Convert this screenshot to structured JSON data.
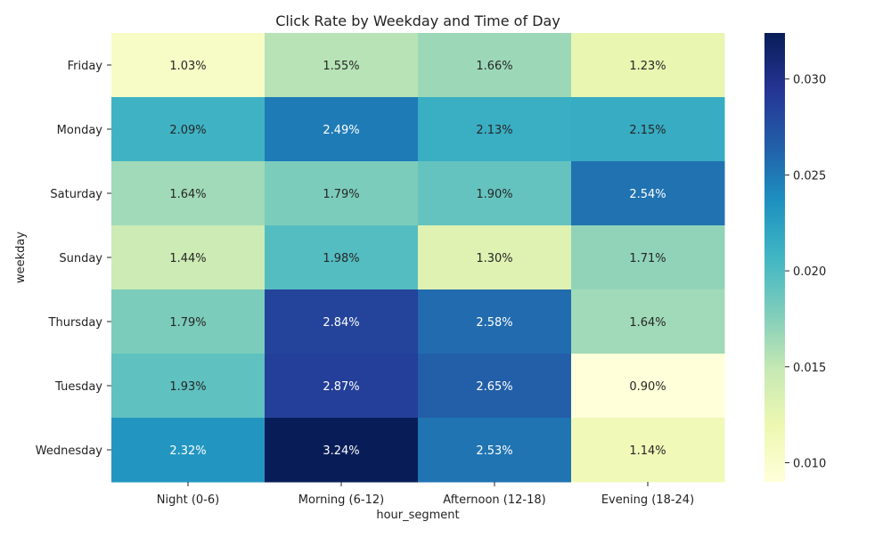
{
  "chart_data": {
    "type": "heatmap",
    "title": "Click Rate by Weekday and Time of Day",
    "xlabel": "hour_segment",
    "ylabel": "weekday",
    "columns": [
      "Night (0-6)",
      "Morning (6-12)",
      "Afternoon (12-18)",
      "Evening (18-24)"
    ],
    "rows": [
      "Friday",
      "Monday",
      "Saturday",
      "Sunday",
      "Thursday",
      "Tuesday",
      "Wednesday"
    ],
    "values": [
      [
        0.0103,
        0.0155,
        0.0166,
        0.0123
      ],
      [
        0.0209,
        0.0249,
        0.0213,
        0.0215
      ],
      [
        0.0164,
        0.0179,
        0.019,
        0.0254
      ],
      [
        0.0144,
        0.0198,
        0.013,
        0.0171
      ],
      [
        0.0179,
        0.0284,
        0.0258,
        0.0164
      ],
      [
        0.0193,
        0.0287,
        0.0265,
        0.009
      ],
      [
        0.0232,
        0.0324,
        0.0253,
        0.0114
      ]
    ],
    "cell_labels": [
      [
        "1.03%",
        "1.55%",
        "1.66%",
        "1.23%"
      ],
      [
        "2.09%",
        "2.49%",
        "2.13%",
        "2.15%"
      ],
      [
        "1.64%",
        "1.79%",
        "1.90%",
        "2.54%"
      ],
      [
        "1.44%",
        "1.98%",
        "1.30%",
        "1.71%"
      ],
      [
        "1.79%",
        "2.84%",
        "2.58%",
        "1.64%"
      ],
      [
        "1.93%",
        "2.87%",
        "2.65%",
        "0.90%"
      ],
      [
        "2.32%",
        "3.24%",
        "2.53%",
        "1.14%"
      ]
    ],
    "colormap": "YlGnBu",
    "colorbar": {
      "range": [
        0.009,
        0.0324
      ],
      "ticks": [
        "0.010",
        "0.015",
        "0.020",
        "0.025",
        "0.030"
      ],
      "tick_values": [
        0.01,
        0.015,
        0.02,
        0.025,
        0.03
      ]
    },
    "grid": false
  }
}
